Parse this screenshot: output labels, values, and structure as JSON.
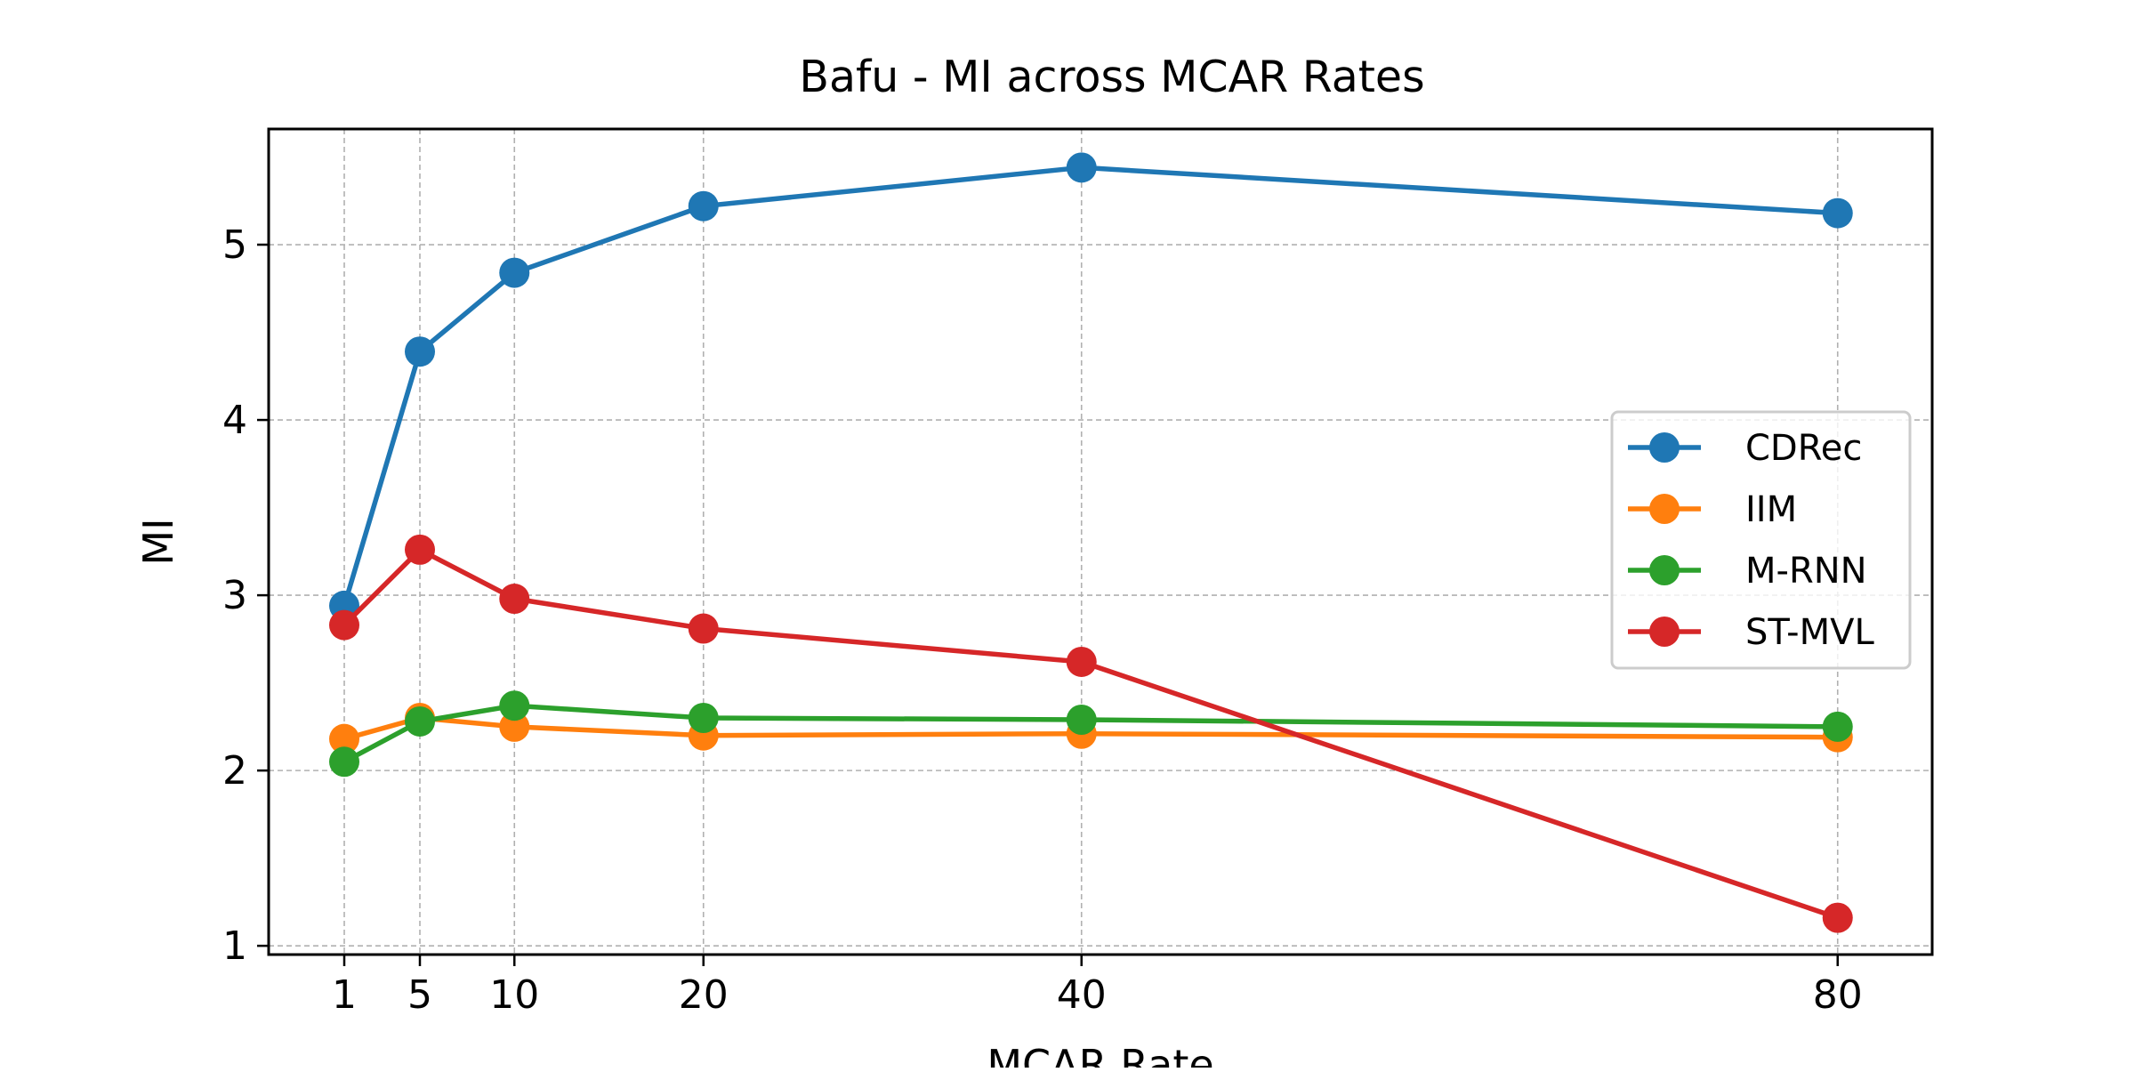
{
  "chart_data": {
    "type": "line",
    "title": "Bafu - MI across MCAR Rates",
    "xlabel": "MCAR Rate",
    "ylabel": "MI",
    "x": [
      1,
      5,
      10,
      20,
      40,
      80
    ],
    "xticks": [
      "1",
      "5",
      "10",
      "20",
      "40",
      "80"
    ],
    "yticks": [
      "1",
      "2",
      "3",
      "4",
      "5"
    ],
    "ytick_values": [
      1,
      2,
      3,
      4,
      5
    ],
    "xlim": [
      -3,
      85
    ],
    "ylim": [
      0.95,
      5.66
    ],
    "grid": true,
    "legend_position": "center-right",
    "series": [
      {
        "name": "CDRec",
        "color": "#1f77b4",
        "values": [
          2.94,
          4.39,
          4.84,
          5.22,
          5.44,
          5.18
        ]
      },
      {
        "name": "IIM",
        "color": "#ff7f0e",
        "values": [
          2.18,
          2.3,
          2.25,
          2.2,
          2.21,
          2.19
        ]
      },
      {
        "name": "M-RNN",
        "color": "#2ca02c",
        "values": [
          2.05,
          2.28,
          2.37,
          2.3,
          2.29,
          2.25
        ]
      },
      {
        "name": "ST-MVL",
        "color": "#d62728",
        "values": [
          2.83,
          3.26,
          2.98,
          2.81,
          2.62,
          1.16
        ]
      }
    ]
  }
}
